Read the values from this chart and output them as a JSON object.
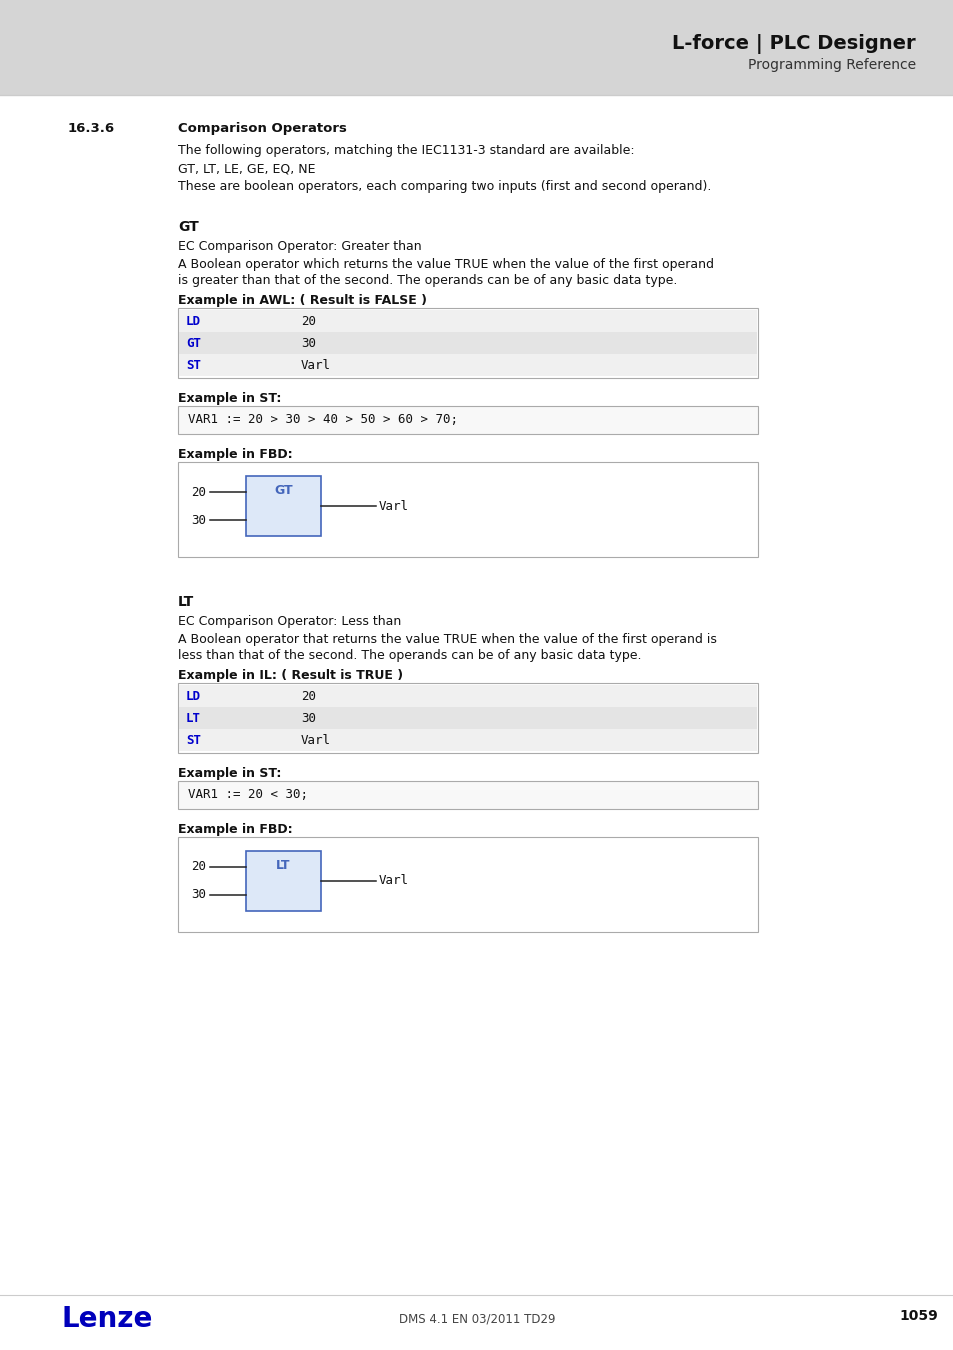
{
  "header_bg": "#d5d5d5",
  "header_title": "L-force | PLC Designer",
  "header_subtitle": "Programming Reference",
  "page_bg": "#ffffff",
  "section_number": "16.3.6",
  "section_title": "Comparison Operators",
  "intro_line1": "The following operators, matching the IEC1131-3 standard are available:",
  "intro_line2": "GT, LT, LE, GE, EQ, NE",
  "intro_line3": "These are boolean operators, each comparing two inputs (first and second operand).",
  "gt_heading": "GT",
  "gt_desc1": "EC Comparison Operator: Greater than",
  "gt_desc2": "A Boolean operator which returns the value TRUE when the value of the first operand",
  "gt_desc3": "is greater than that of the second. The operands can be of any basic data type.",
  "gt_awl_label": "Example in AWL: ( Result is FALSE )",
  "gt_awl_rows": [
    [
      "LD",
      "20"
    ],
    [
      "GT",
      "30"
    ],
    [
      "ST",
      "Varl"
    ]
  ],
  "gt_st_label": "Example in ST:",
  "gt_st_code": "VAR1 := 20 > 30 > 40 > 50 > 60 > 70;",
  "gt_fbd_label": "Example in FBD:",
  "gt_fbd_inputs": [
    "20",
    "30"
  ],
  "gt_fbd_op": "GT",
  "gt_fbd_output": "Varl",
  "lt_heading": "LT",
  "lt_desc1": "EC Comparison Operator: Less than",
  "lt_desc2": "A Boolean operator that returns the value TRUE when the value of the first operand is",
  "lt_desc3": "less than that of the second. The operands can be of any basic data type.",
  "lt_il_label": "Example in IL: ( Result is TRUE )",
  "lt_il_rows": [
    [
      "LD",
      "20"
    ],
    [
      "LT",
      "30"
    ],
    [
      "ST",
      "Varl"
    ]
  ],
  "lt_st_label": "Example in ST:",
  "lt_st_code": "VAR1 := 20 < 30;",
  "lt_fbd_label": "Example in FBD:",
  "lt_fbd_inputs": [
    "20",
    "30"
  ],
  "lt_fbd_op": "LT",
  "lt_fbd_output": "Varl",
  "footer_logo": "Lenze",
  "footer_center": "DMS 4.1 EN 03/2011 TD29",
  "footer_page": "1059",
  "blue_color": "#0000bb",
  "keyword_color": "#0000cc",
  "table_row_bg1": "#f0f0f0",
  "table_row_bg2": "#e4e4e4",
  "table_border": "#aaaaaa",
  "code_box_bg": "#f8f8f8",
  "fbd_box_fill": "#dde8f8",
  "fbd_box_stroke": "#4466bb",
  "sep_line": "#cccccc"
}
